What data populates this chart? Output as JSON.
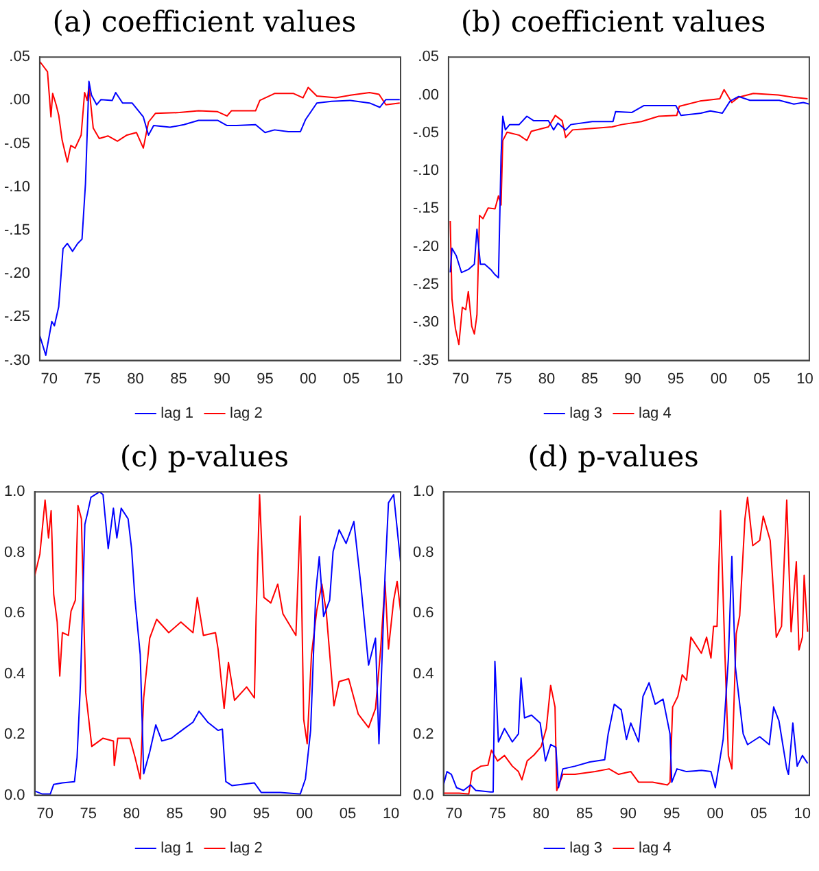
{
  "chart_data": [
    {
      "type": "line",
      "title": "(a) coefficient values",
      "legend": "bottom",
      "grid": false,
      "marker": "none",
      "line_style": "solid",
      "xlim": [
        1968.9,
        2010.7
      ],
      "xticks": [
        {
          "value": 1970,
          "label": "70"
        },
        {
          "value": 1975,
          "label": "75"
        },
        {
          "value": 1980,
          "label": "80"
        },
        {
          "value": 1985,
          "label": "85"
        },
        {
          "value": 1990,
          "label": "90"
        },
        {
          "value": 1995,
          "label": "95"
        },
        {
          "value": 2000,
          "label": "00"
        },
        {
          "value": 2005,
          "label": "05"
        },
        {
          "value": 2010,
          "label": "10"
        }
      ],
      "ylim": [
        -0.3,
        0.05
      ],
      "yticks": [
        {
          "value": 0.05,
          "label": ".05"
        },
        {
          "value": 0,
          "label": ".00"
        },
        {
          "value": -0.05,
          "label": "-.05"
        },
        {
          "value": -0.1,
          "label": "-.10"
        },
        {
          "value": -0.15,
          "label": "-.15"
        },
        {
          "value": -0.2,
          "label": "-.20"
        },
        {
          "value": -0.25,
          "label": "-.25"
        },
        {
          "value": -0.3,
          "label": "-.30"
        }
      ],
      "series": [
        {
          "name": "lag 1",
          "color": "#0000ff",
          "x": [
            1968.9,
            1969.6,
            1970.3,
            1970.6,
            1971.1,
            1971.6,
            1972.1,
            1972.7,
            1973.3,
            1973.8,
            1974.2,
            1974.6,
            1974.9,
            1975.5,
            1976.0,
            1977.3,
            1977.7,
            1978.5,
            1979.6,
            1980.9,
            1981.5,
            1982.1,
            1984.0,
            1985.6,
            1987.3,
            1989.5,
            1990.6,
            1991.7,
            1993.9,
            1995.0,
            1996.1,
            1997.7,
            1999.1,
            1999.7,
            2001.0,
            2002.7,
            2004.9,
            2007.1,
            2008.3,
            2009.0,
            2010.6
          ],
          "values": [
            -0.271,
            -0.294,
            -0.255,
            -0.26,
            -0.238,
            -0.171,
            -0.165,
            -0.174,
            -0.165,
            -0.16,
            -0.096,
            0.022,
            0.006,
            -0.005,
            0.001,
            0.0,
            0.009,
            -0.003,
            -0.003,
            -0.019,
            -0.04,
            -0.029,
            -0.031,
            -0.028,
            -0.023,
            -0.023,
            -0.029,
            -0.029,
            -0.028,
            -0.037,
            -0.034,
            -0.036,
            -0.036,
            -0.022,
            -0.003,
            -0.001,
            0.0,
            -0.003,
            -0.008,
            0.001,
            0.001
          ]
        },
        {
          "name": "lag 2",
          "color": "#ff0000",
          "x": [
            1968.9,
            1969.8,
            1970.2,
            1970.4,
            1970.8,
            1971.1,
            1971.5,
            1972.1,
            1972.5,
            1973.0,
            1973.7,
            1974.1,
            1974.4,
            1974.6,
            1975.1,
            1975.8,
            1976.8,
            1977.9,
            1979.0,
            1980.1,
            1980.9,
            1981.5,
            1982.3,
            1985.1,
            1987.3,
            1989.5,
            1990.6,
            1991.1,
            1993.9,
            1994.4,
            1996.1,
            1998.3,
            1999.4,
            2000.0,
            2001.0,
            2003.2,
            2004.9,
            2007.1,
            2008.2,
            2009.0,
            2010.6
          ],
          "values": [
            0.045,
            0.033,
            -0.019,
            0.008,
            -0.005,
            -0.017,
            -0.046,
            -0.071,
            -0.052,
            -0.055,
            -0.04,
            0.009,
            0.0,
            0.016,
            -0.032,
            -0.044,
            -0.041,
            -0.047,
            -0.04,
            -0.037,
            -0.055,
            -0.025,
            -0.015,
            -0.014,
            -0.012,
            -0.013,
            -0.018,
            -0.012,
            -0.012,
            0.0,
            0.008,
            0.008,
            0.003,
            0.015,
            0.005,
            0.003,
            0.006,
            0.009,
            0.007,
            -0.005,
            -0.003
          ]
        }
      ]
    },
    {
      "type": "line",
      "title": "(b) coefficient values",
      "legend": "bottom",
      "grid": false,
      "marker": "none",
      "line_style": "solid",
      "xlim": [
        1968.6,
        2010.5
      ],
      "xticks": [
        {
          "value": 1970,
          "label": "70"
        },
        {
          "value": 1975,
          "label": "75"
        },
        {
          "value": 1980,
          "label": "80"
        },
        {
          "value": 1985,
          "label": "85"
        },
        {
          "value": 1990,
          "label": "90"
        },
        {
          "value": 1995,
          "label": "95"
        },
        {
          "value": 2000,
          "label": "00"
        },
        {
          "value": 2005,
          "label": "05"
        },
        {
          "value": 2010,
          "label": "10"
        }
      ],
      "ylim": [
        -0.35,
        0.05
      ],
      "yticks": [
        {
          "value": 0.05,
          "label": ".05"
        },
        {
          "value": 0,
          "label": ".00"
        },
        {
          "value": -0.05,
          "label": "-.05"
        },
        {
          "value": -0.1,
          "label": "-.10"
        },
        {
          "value": -0.15,
          "label": "-.15"
        },
        {
          "value": -0.2,
          "label": "-.20"
        },
        {
          "value": -0.25,
          "label": "-.25"
        },
        {
          "value": -0.3,
          "label": "-.30"
        },
        {
          "value": -0.35,
          "label": "-.35"
        }
      ],
      "series": [
        {
          "name": "lag 3",
          "color": "#0000ff",
          "x": [
            1968.8,
            1969.0,
            1969.5,
            1970.1,
            1970.9,
            1971.6,
            1971.9,
            1972.3,
            1972.8,
            1973.5,
            1974.0,
            1974.4,
            1974.7,
            1974.9,
            1975.2,
            1975.7,
            1976.8,
            1977.7,
            1978.5,
            1980.2,
            1980.8,
            1981.3,
            1982.2,
            1982.8,
            1985.3,
            1987.7,
            1988.0,
            1989.9,
            1991.3,
            1995.0,
            1995.6,
            1997.9,
            1999.0,
            2000.4,
            2001.3,
            2002.3,
            2003.6,
            2007.0,
            2008.7,
            2009.8,
            2010.5
          ],
          "values": [
            -0.234,
            -0.202,
            -0.212,
            -0.234,
            -0.23,
            -0.223,
            -0.177,
            -0.223,
            -0.223,
            -0.23,
            -0.237,
            -0.241,
            -0.081,
            -0.028,
            -0.046,
            -0.039,
            -0.039,
            -0.028,
            -0.034,
            -0.034,
            -0.046,
            -0.037,
            -0.046,
            -0.039,
            -0.035,
            -0.035,
            -0.022,
            -0.023,
            -0.014,
            -0.014,
            -0.027,
            -0.024,
            -0.021,
            -0.024,
            -0.008,
            -0.002,
            -0.007,
            -0.007,
            -0.012,
            -0.01,
            -0.012
          ]
        },
        {
          "name": "lag 4",
          "color": "#ff0000",
          "x": [
            1968.8,
            1969.0,
            1969.4,
            1969.8,
            1970.2,
            1970.6,
            1970.9,
            1971.3,
            1971.6,
            1971.9,
            1972.2,
            1972.6,
            1973.2,
            1974.0,
            1974.4,
            1974.7,
            1974.9,
            1975.4,
            1976.8,
            1977.7,
            1978.2,
            1980.2,
            1981.0,
            1981.8,
            1982.2,
            1983.0,
            1985.3,
            1987.6,
            1988.7,
            1991.0,
            1993.0,
            1995.1,
            1995.4,
            1997.8,
            2000.1,
            2000.6,
            2001.5,
            2002.3,
            2004.0,
            2006.9,
            2008.6,
            2010.3
          ],
          "values": [
            -0.166,
            -0.269,
            -0.308,
            -0.329,
            -0.28,
            -0.283,
            -0.259,
            -0.305,
            -0.315,
            -0.29,
            -0.159,
            -0.163,
            -0.149,
            -0.15,
            -0.133,
            -0.145,
            -0.06,
            -0.049,
            -0.053,
            -0.06,
            -0.048,
            -0.042,
            -0.027,
            -0.034,
            -0.056,
            -0.046,
            -0.044,
            -0.042,
            -0.039,
            -0.035,
            -0.028,
            -0.027,
            -0.015,
            -0.008,
            -0.005,
            0.007,
            -0.01,
            -0.003,
            0.002,
            0.0,
            -0.003,
            -0.005
          ]
        }
      ]
    },
    {
      "type": "line",
      "title": "(c) p-values",
      "legend": "bottom",
      "grid": false,
      "marker": "none",
      "line_style": "solid",
      "xlim": [
        1968.8,
        2011.1
      ],
      "xticks": [
        {
          "value": 1970,
          "label": "70"
        },
        {
          "value": 1975,
          "label": "75"
        },
        {
          "value": 1980,
          "label": "80"
        },
        {
          "value": 1985,
          "label": "85"
        },
        {
          "value": 1990,
          "label": "90"
        },
        {
          "value": 1995,
          "label": "95"
        },
        {
          "value": 2000,
          "label": "00"
        },
        {
          "value": 2005,
          "label": "05"
        },
        {
          "value": 2010,
          "label": "10"
        }
      ],
      "ylim": [
        0,
        1
      ],
      "yticks": [
        {
          "value": 0,
          "label": "0.0"
        },
        {
          "value": 0.2,
          "label": "0.2"
        },
        {
          "value": 0.4,
          "label": "0.4"
        },
        {
          "value": 0.6,
          "label": "0.6"
        },
        {
          "value": 0.8,
          "label": "0.8"
        },
        {
          "value": 1,
          "label": "1.0"
        }
      ],
      "series": [
        {
          "name": "lag 1",
          "color": "#0000ff",
          "x": [
            1968.8,
            1969.7,
            1970.6,
            1971.0,
            1972.0,
            1973.4,
            1973.7,
            1974.1,
            1974.6,
            1974.9,
            1975.3,
            1976.3,
            1976.7,
            1977.3,
            1977.9,
            1978.3,
            1978.8,
            1979.6,
            1980.0,
            1980.4,
            1981.0,
            1981.4,
            1982.1,
            1982.8,
            1983.5,
            1984.6,
            1986.0,
            1987.1,
            1987.8,
            1988.8,
            1990.0,
            1990.5,
            1990.9,
            1991.6,
            1994.2,
            1995.0,
            1997.2,
            1999.5,
            2000.1,
            2000.7,
            2001.3,
            2001.7,
            2002.2,
            2002.9,
            2003.3,
            2004.0,
            2004.8,
            2005.7,
            2006.5,
            2007.4,
            2008.2,
            2008.6,
            2009.3,
            2009.7,
            2010.3,
            2011.1
          ],
          "values": [
            0.014,
            0.004,
            0.004,
            0.036,
            0.041,
            0.045,
            0.125,
            0.375,
            0.893,
            0.929,
            0.982,
            1.0,
            0.991,
            0.813,
            0.946,
            0.848,
            0.946,
            0.911,
            0.813,
            0.643,
            0.464,
            0.071,
            0.143,
            0.232,
            0.179,
            0.188,
            0.218,
            0.241,
            0.277,
            0.241,
            0.214,
            0.218,
            0.045,
            0.032,
            0.041,
            0.009,
            0.009,
            0.004,
            0.054,
            0.214,
            0.67,
            0.786,
            0.589,
            0.643,
            0.804,
            0.875,
            0.83,
            0.902,
            0.696,
            0.429,
            0.518,
            0.17,
            0.723,
            0.964,
            0.991,
            0.768
          ]
        },
        {
          "name": "lag 2",
          "color": "#ff0000",
          "x": [
            1968.8,
            1969.4,
            1970.0,
            1970.4,
            1970.7,
            1971.0,
            1971.4,
            1971.7,
            1972.0,
            1972.7,
            1973.0,
            1973.5,
            1973.8,
            1974.2,
            1974.7,
            1975.4,
            1976.7,
            1977.9,
            1978.0,
            1978.4,
            1979.8,
            1980.4,
            1981.0,
            1981.4,
            1982.1,
            1982.9,
            1984.3,
            1985.7,
            1987.1,
            1987.6,
            1988.3,
            1989.7,
            1990.0,
            1990.7,
            1991.2,
            1991.9,
            1993.3,
            1994.2,
            1994.4,
            1994.8,
            1995.3,
            1996.1,
            1996.9,
            1997.5,
            1999.0,
            1999.5,
            1999.9,
            2000.3,
            2000.8,
            2001.4,
            2002.0,
            2002.5,
            2003.4,
            2004.0,
            2005.1,
            2006.2,
            2007.4,
            2008.2,
            2008.8,
            2009.3,
            2009.7,
            2010.3,
            2010.7,
            2011.1
          ],
          "values": [
            0.723,
            0.795,
            0.973,
            0.848,
            0.938,
            0.661,
            0.571,
            0.393,
            0.536,
            0.527,
            0.607,
            0.643,
            0.955,
            0.911,
            0.339,
            0.161,
            0.188,
            0.179,
            0.098,
            0.188,
            0.188,
            0.125,
            0.054,
            0.321,
            0.518,
            0.58,
            0.536,
            0.571,
            0.536,
            0.652,
            0.527,
            0.536,
            0.482,
            0.286,
            0.438,
            0.313,
            0.357,
            0.321,
            0.589,
            0.991,
            0.652,
            0.634,
            0.696,
            0.598,
            0.527,
            0.92,
            0.25,
            0.17,
            0.464,
            0.607,
            0.696,
            0.607,
            0.295,
            0.375,
            0.384,
            0.268,
            0.223,
            0.286,
            0.482,
            0.705,
            0.482,
            0.643,
            0.705,
            0.607
          ]
        }
      ]
    },
    {
      "type": "line",
      "title": "(d) p-values",
      "legend": "bottom",
      "grid": false,
      "marker": "none",
      "line_style": "solid",
      "xlim": [
        1968.8,
        2010.8
      ],
      "xticks": [
        {
          "value": 1970,
          "label": "70"
        },
        {
          "value": 1975,
          "label": "75"
        },
        {
          "value": 1980,
          "label": "80"
        },
        {
          "value": 1985,
          "label": "85"
        },
        {
          "value": 1990,
          "label": "90"
        },
        {
          "value": 1995,
          "label": "95"
        },
        {
          "value": 2000,
          "label": "00"
        },
        {
          "value": 2005,
          "label": "05"
        },
        {
          "value": 2010,
          "label": "10"
        }
      ],
      "ylim": [
        0,
        1
      ],
      "yticks": [
        {
          "value": 0,
          "label": "0.0"
        },
        {
          "value": 0.2,
          "label": "0.2"
        },
        {
          "value": 0.4,
          "label": "0.4"
        },
        {
          "value": 0.6,
          "label": "0.6"
        },
        {
          "value": 0.8,
          "label": "0.8"
        },
        {
          "value": 1,
          "label": "1.0"
        }
      ],
      "series": [
        {
          "name": "lag 3",
          "color": "#0000ff",
          "x": [
            1968.8,
            1969.2,
            1969.7,
            1970.3,
            1971.1,
            1971.9,
            1972.5,
            1974.2,
            1974.5,
            1974.7,
            1975.1,
            1975.8,
            1976.7,
            1977.4,
            1977.7,
            1978.1,
            1978.9,
            1979.9,
            1980.5,
            1981.1,
            1981.7,
            1982.0,
            1982.5,
            1983.9,
            1985.6,
            1987.3,
            1987.7,
            1988.4,
            1989.2,
            1989.8,
            1990.3,
            1991.2,
            1991.7,
            1992.4,
            1993.1,
            1994.0,
            1994.8,
            1995.0,
            1995.6,
            1996.7,
            1998.4,
            1999.5,
            2000.0,
            2000.9,
            2001.5,
            2001.9,
            2002.3,
            2003.2,
            2003.7,
            2005.1,
            2006.2,
            2006.7,
            2007.3,
            2008.2,
            2008.4,
            2008.9,
            2009.4,
            2010.0,
            2010.6
          ],
          "values": [
            0.034,
            0.078,
            0.069,
            0.025,
            0.016,
            0.034,
            0.016,
            0.011,
            0.011,
            0.441,
            0.176,
            0.22,
            0.176,
            0.202,
            0.387,
            0.255,
            0.264,
            0.238,
            0.113,
            0.167,
            0.158,
            0.025,
            0.087,
            0.096,
            0.11,
            0.117,
            0.202,
            0.3,
            0.282,
            0.184,
            0.238,
            0.176,
            0.326,
            0.371,
            0.3,
            0.317,
            0.202,
            0.043,
            0.087,
            0.078,
            0.082,
            0.078,
            0.025,
            0.184,
            0.45,
            0.787,
            0.424,
            0.202,
            0.167,
            0.193,
            0.167,
            0.291,
            0.246,
            0.087,
            0.069,
            0.238,
            0.096,
            0.131,
            0.105
          ]
        },
        {
          "name": "lag 4",
          "color": "#ff0000",
          "x": [
            1968.8,
            1970.6,
            1971.7,
            1972.1,
            1973.1,
            1973.9,
            1974.3,
            1975.0,
            1975.8,
            1976.7,
            1977.4,
            1977.8,
            1978.4,
            1979.2,
            1980.0,
            1980.6,
            1981.1,
            1981.6,
            1981.8,
            1982.5,
            1983.9,
            1986.2,
            1987.8,
            1988.9,
            1990.3,
            1991.2,
            1992.8,
            1994.5,
            1994.8,
            1995.1,
            1995.7,
            1996.2,
            1996.7,
            1997.2,
            1998.4,
            1999.0,
            1999.5,
            1999.8,
            2000.2,
            2000.6,
            2001.1,
            2001.5,
            2001.9,
            2002.4,
            2002.8,
            2003.4,
            2003.7,
            2004.3,
            2005.1,
            2005.5,
            2006.3,
            2007.0,
            2007.6,
            2008.2,
            2008.7,
            2009.3,
            2009.6,
            2010.0,
            2010.2,
            2010.6
          ],
          "values": [
            0.007,
            0.007,
            0.004,
            0.078,
            0.096,
            0.099,
            0.149,
            0.113,
            0.131,
            0.096,
            0.078,
            0.051,
            0.113,
            0.133,
            0.16,
            0.22,
            0.362,
            0.291,
            0.016,
            0.069,
            0.069,
            0.078,
            0.087,
            0.069,
            0.078,
            0.043,
            0.043,
            0.034,
            0.043,
            0.291,
            0.326,
            0.397,
            0.379,
            0.521,
            0.468,
            0.521,
            0.452,
            0.557,
            0.557,
            0.938,
            0.468,
            0.131,
            0.087,
            0.532,
            0.592,
            0.911,
            0.982,
            0.823,
            0.84,
            0.92,
            0.84,
            0.521,
            0.557,
            0.973,
            0.539,
            0.77,
            0.479,
            0.521,
            0.725,
            0.539
          ]
        }
      ]
    }
  ]
}
